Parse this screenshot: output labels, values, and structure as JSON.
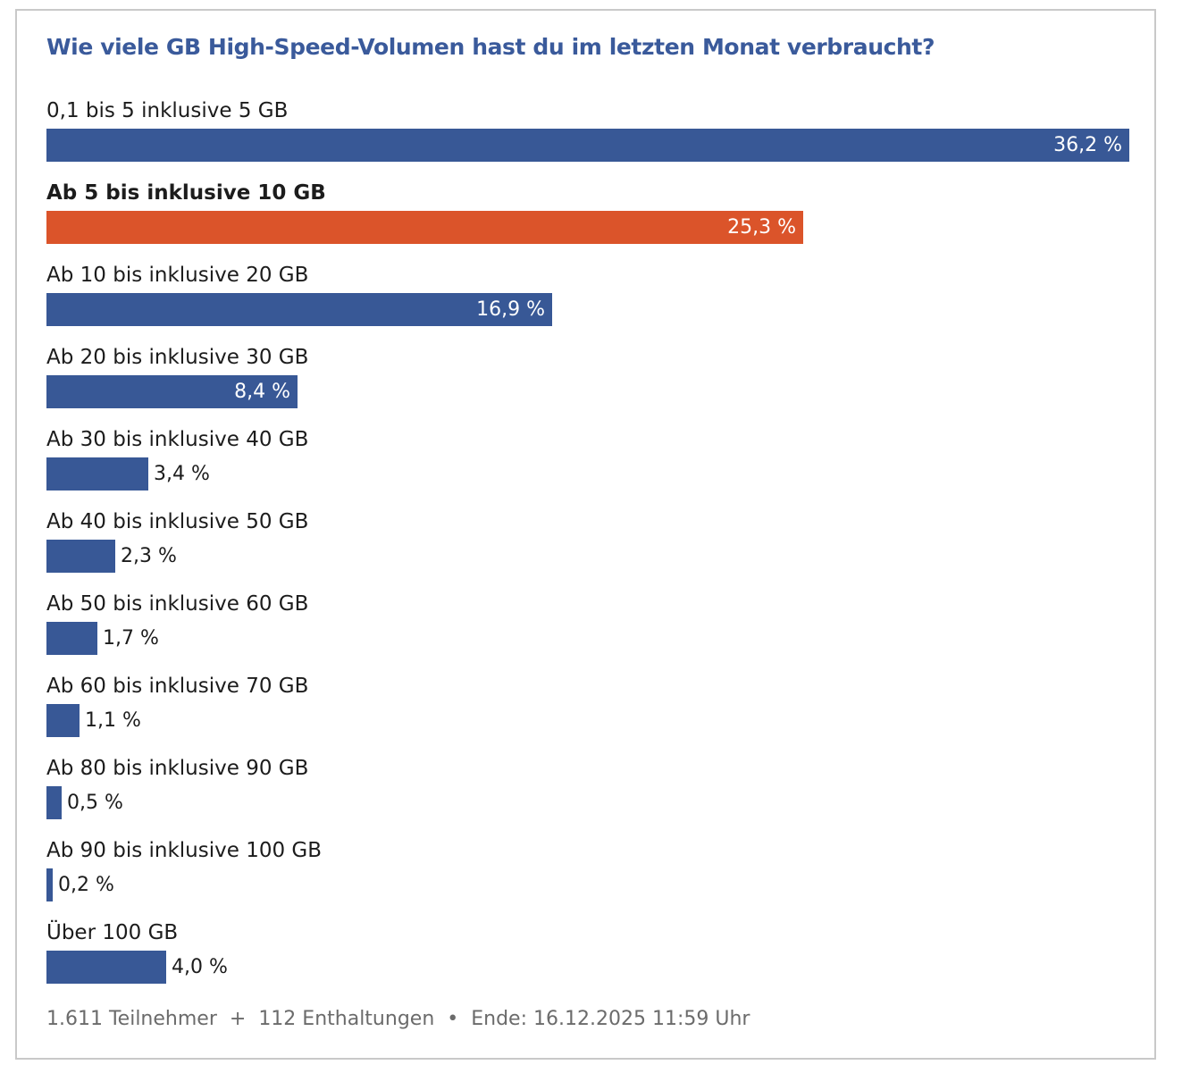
{
  "poll": {
    "title": "Wie viele GB High-Speed-Volumen hast du im letzten Monat verbraucht?",
    "selected_index": 1
  },
  "colors": {
    "bar": "#385896",
    "selected_bar": "#db542a",
    "title": "#3a5a9b"
  },
  "chart_data": {
    "type": "bar",
    "orientation": "horizontal",
    "title": "Wie viele GB High-Speed-Volumen hast du im letzten Monat verbraucht?",
    "categories": [
      "0,1 bis 5 inklusive 5 GB",
      "Ab 5 bis inklusive 10 GB",
      "Ab 10 bis inklusive 20 GB",
      "Ab 20 bis inklusive 30 GB",
      "Ab 30 bis inklusive 40 GB",
      "Ab 40 bis inklusive 50 GB",
      "Ab 50 bis inklusive 60 GB",
      "Ab 60 bis inklusive 70 GB",
      "Ab 80 bis inklusive 90 GB",
      "Ab 90 bis inklusive 100 GB",
      "Über 100 GB"
    ],
    "values": [
      36.2,
      25.3,
      16.9,
      8.4,
      3.4,
      2.3,
      1.7,
      1.1,
      0.5,
      0.2,
      4.0
    ],
    "value_labels": [
      "36,2 %",
      "25,3 %",
      "16,9 %",
      "8,4 %",
      "3,4 %",
      "2,3 %",
      "1,7 %",
      "1,1 %",
      "0,5 %",
      "0,2 %",
      "4,0 %"
    ],
    "unit": "%",
    "max_value": 36.2
  },
  "footer": {
    "participants": "1.611 Teilnehmer",
    "plus": "+",
    "abstentions": "112 Enthaltungen",
    "bullet": "•",
    "end": "Ende: 16.12.2025 11:59 Uhr"
  }
}
